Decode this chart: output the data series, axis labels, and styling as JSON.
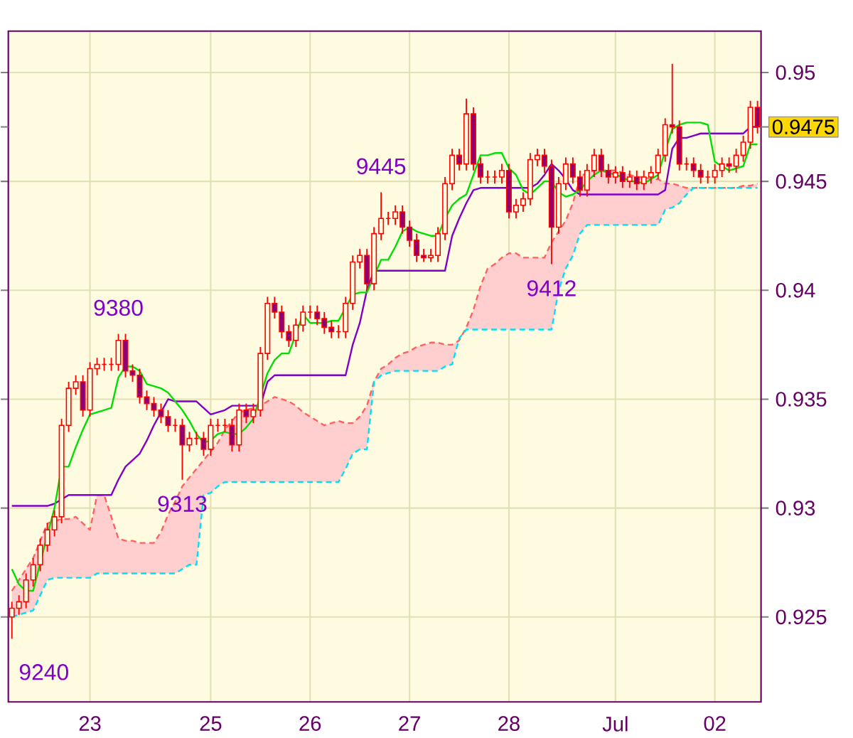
{
  "chart_data": {
    "type": "candlestick",
    "color": "#ff0000",
    "categories": [
      null,
      null,
      null,
      null,
      null,
      null,
      null,
      null,
      null,
      null,
      null,
      "23",
      null,
      null,
      null,
      null,
      null,
      null,
      null,
      null,
      null,
      null,
      null,
      null,
      null,
      null,
      null,
      null,
      "25",
      null,
      null,
      null,
      null,
      null,
      null,
      null,
      null,
      null,
      null,
      null,
      null,
      null,
      "26",
      null,
      null,
      null,
      null,
      null,
      null,
      null,
      null,
      null,
      null,
      null,
      null,
      null,
      "27",
      null,
      null,
      null,
      null,
      null,
      null,
      null,
      null,
      null,
      null,
      null,
      null,
      null,
      "28",
      null,
      null,
      null,
      null,
      null,
      null,
      null,
      null,
      null,
      null,
      null,
      null,
      null,
      null,
      "Jul",
      null,
      null,
      null,
      null,
      null,
      null,
      null,
      null,
      null,
      null,
      null,
      null,
      null,
      "02",
      null,
      null,
      null,
      null,
      null,
      null
    ],
    "ohlc": [
      [
        0.925,
        0.9257,
        0.924,
        0.9254
      ],
      [
        0.9254,
        0.926,
        0.9251,
        0.9257
      ],
      [
        0.9257,
        0.927,
        0.9254,
        0.9267
      ],
      [
        0.9267,
        0.9277,
        0.9264,
        0.9274
      ],
      [
        0.9274,
        0.9286,
        0.9271,
        0.9283
      ],
      [
        0.9283,
        0.9293,
        0.928,
        0.929
      ],
      [
        0.929,
        0.9299,
        0.9287,
        0.9296
      ],
      [
        0.9296,
        0.9341,
        0.9293,
        0.9338
      ],
      [
        0.9338,
        0.9358,
        0.9335,
        0.9355
      ],
      [
        0.9355,
        0.9361,
        0.9352,
        0.9358
      ],
      [
        0.9358,
        0.9361,
        0.9342,
        0.9345
      ],
      [
        0.9345,
        0.9367,
        0.9342,
        0.9364
      ],
      [
        0.9364,
        0.9369,
        0.9361,
        0.9366
      ],
      [
        0.9366,
        0.9369,
        0.9363,
        0.9366
      ],
      [
        0.9366,
        0.9369,
        0.9363,
        0.9366
      ],
      [
        0.9366,
        0.938,
        0.9363,
        0.9377
      ],
      [
        0.9377,
        0.938,
        0.936,
        0.9363
      ],
      [
        0.9363,
        0.9366,
        0.9358,
        0.9361
      ],
      [
        0.9361,
        0.9364,
        0.9348,
        0.9351
      ],
      [
        0.9351,
        0.9354,
        0.9345,
        0.9348
      ],
      [
        0.9348,
        0.9351,
        0.9342,
        0.9345
      ],
      [
        0.9345,
        0.9348,
        0.9339,
        0.9342
      ],
      [
        0.9342,
        0.9345,
        0.9335,
        0.9338
      ],
      [
        0.9338,
        0.9341,
        0.9335,
        0.9338
      ],
      [
        0.9338,
        0.9341,
        0.9313,
        0.9329
      ],
      [
        0.9329,
        0.9335,
        0.9326,
        0.9332
      ],
      [
        0.9332,
        0.9335,
        0.9329,
        0.9332
      ],
      [
        0.9332,
        0.9335,
        0.9324,
        0.9327
      ],
      [
        0.9327,
        0.9341,
        0.9324,
        0.9338
      ],
      [
        0.9338,
        0.9341,
        0.9335,
        0.9338
      ],
      [
        0.9338,
        0.9341,
        0.9335,
        0.9338
      ],
      [
        0.9338,
        0.9341,
        0.9326,
        0.9329
      ],
      [
        0.9329,
        0.9348,
        0.9326,
        0.9345
      ],
      [
        0.9345,
        0.9348,
        0.9339,
        0.9342
      ],
      [
        0.9342,
        0.9348,
        0.9339,
        0.9345
      ],
      [
        0.9345,
        0.9374,
        0.9342,
        0.9371
      ],
      [
        0.9371,
        0.9397,
        0.9368,
        0.9394
      ],
      [
        0.9394,
        0.9397,
        0.9387,
        0.939
      ],
      [
        0.939,
        0.9393,
        0.9378,
        0.9381
      ],
      [
        0.9381,
        0.9384,
        0.9374,
        0.9377
      ],
      [
        0.9377,
        0.9387,
        0.9374,
        0.9384
      ],
      [
        0.9384,
        0.9393,
        0.9381,
        0.939
      ],
      [
        0.939,
        0.9393,
        0.9387,
        0.939
      ],
      [
        0.939,
        0.9393,
        0.9384,
        0.9387
      ],
      [
        0.9387,
        0.939,
        0.938,
        0.9383
      ],
      [
        0.9383,
        0.9386,
        0.9378,
        0.9381
      ],
      [
        0.9381,
        0.9384,
        0.9378,
        0.9381
      ],
      [
        0.9381,
        0.9397,
        0.9378,
        0.9394
      ],
      [
        0.9394,
        0.9416,
        0.9391,
        0.9413
      ],
      [
        0.9413,
        0.9419,
        0.941,
        0.9416
      ],
      [
        0.9416,
        0.9419,
        0.94,
        0.9403
      ],
      [
        0.9403,
        0.9429,
        0.94,
        0.9426
      ],
      [
        0.9426,
        0.9445,
        0.9423,
        0.9433
      ],
      [
        0.9433,
        0.9436,
        0.943,
        0.9433
      ],
      [
        0.9433,
        0.9439,
        0.943,
        0.9436
      ],
      [
        0.9436,
        0.9439,
        0.9426,
        0.9429
      ],
      [
        0.9429,
        0.9432,
        0.942,
        0.9423
      ],
      [
        0.9423,
        0.9426,
        0.9413,
        0.9416
      ],
      [
        0.9416,
        0.9419,
        0.9413,
        0.9415
      ],
      [
        0.9415,
        0.9419,
        0.9413,
        0.9416
      ],
      [
        0.9416,
        0.9429,
        0.9413,
        0.9426
      ],
      [
        0.9426,
        0.9452,
        0.9423,
        0.9449
      ],
      [
        0.9449,
        0.9465,
        0.9446,
        0.9462
      ],
      [
        0.9462,
        0.9465,
        0.9455,
        0.9458
      ],
      [
        0.9458,
        0.9488,
        0.9455,
        0.9481
      ],
      [
        0.9481,
        0.9484,
        0.9455,
        0.9458
      ],
      [
        0.9458,
        0.9461,
        0.9449,
        0.9452
      ],
      [
        0.9452,
        0.9455,
        0.9449,
        0.9452
      ],
      [
        0.9452,
        0.9455,
        0.9449,
        0.9452
      ],
      [
        0.9452,
        0.9458,
        0.9449,
        0.9455
      ],
      [
        0.9455,
        0.9458,
        0.9433,
        0.9436
      ],
      [
        0.9436,
        0.9442,
        0.9433,
        0.9439
      ],
      [
        0.9439,
        0.9445,
        0.9436,
        0.9442
      ],
      [
        0.9442,
        0.9463,
        0.9439,
        0.946
      ],
      [
        0.946,
        0.9465,
        0.9457,
        0.9462
      ],
      [
        0.9462,
        0.9465,
        0.9454,
        0.9457
      ],
      [
        0.9457,
        0.946,
        0.9412,
        0.9429
      ],
      [
        0.9429,
        0.9452,
        0.9426,
        0.9449
      ],
      [
        0.9449,
        0.9461,
        0.9446,
        0.9458
      ],
      [
        0.9458,
        0.9461,
        0.9449,
        0.9452
      ],
      [
        0.9452,
        0.9455,
        0.9443,
        0.9446
      ],
      [
        0.9446,
        0.9458,
        0.9443,
        0.9455
      ],
      [
        0.9455,
        0.9465,
        0.9452,
        0.9462
      ],
      [
        0.9462,
        0.9465,
        0.9452,
        0.9455
      ],
      [
        0.9455,
        0.9458,
        0.9449,
        0.9452
      ],
      [
        0.9452,
        0.9457,
        0.9449,
        0.9454
      ],
      [
        0.9454,
        0.9457,
        0.9447,
        0.945
      ],
      [
        0.945,
        0.9455,
        0.9447,
        0.9452
      ],
      [
        0.9452,
        0.9455,
        0.9446,
        0.9449
      ],
      [
        0.9449,
        0.9455,
        0.9446,
        0.9452
      ],
      [
        0.9452,
        0.9457,
        0.9449,
        0.9454
      ],
      [
        0.9454,
        0.9465,
        0.9451,
        0.9462
      ],
      [
        0.9462,
        0.9479,
        0.9459,
        0.9476
      ],
      [
        0.9476,
        0.9504,
        0.9472,
        0.9475
      ],
      [
        0.9475,
        0.9478,
        0.9455,
        0.9458
      ],
      [
        0.9458,
        0.9461,
        0.9455,
        0.9458
      ],
      [
        0.9458,
        0.9461,
        0.9452,
        0.9455
      ],
      [
        0.9455,
        0.9458,
        0.9449,
        0.9452
      ],
      [
        0.9452,
        0.9455,
        0.9449,
        0.9452
      ],
      [
        0.9452,
        0.9458,
        0.9449,
        0.9455
      ],
      [
        0.9455,
        0.9461,
        0.9452,
        0.9458
      ],
      [
        0.9458,
        0.9461,
        0.9454,
        0.9457
      ],
      [
        0.9457,
        0.9465,
        0.9454,
        0.9462
      ],
      [
        0.9462,
        0.9471,
        0.9459,
        0.9468
      ],
      [
        0.9468,
        0.9487,
        0.9465,
        0.9484
      ],
      [
        0.9484,
        0.9487,
        0.9472,
        0.9475
      ]
    ],
    "series": [
      {
        "type": "line",
        "color": "#ff6060",
        "line_style": "dashed",
        "values": [
          0.9262,
          0.9267,
          0.9272,
          0.9277,
          0.9285,
          0.9293,
          0.9294,
          0.9295,
          0.9295,
          0.9296,
          0.9293,
          0.929,
          0.9306,
          0.9306,
          0.9296,
          0.9286,
          0.9285,
          0.9285,
          0.9284,
          0.9284,
          0.9284,
          0.9289,
          0.9297,
          0.9303,
          0.931,
          0.9314,
          0.9318,
          0.9322,
          0.9326,
          0.933,
          0.9336,
          0.934,
          0.9344,
          0.9345,
          0.9346,
          0.9347,
          0.9349,
          0.9351,
          0.935,
          0.9349,
          0.9347,
          0.9344,
          0.9342,
          0.934,
          0.9338,
          0.9339,
          0.934,
          0.9339,
          0.9339,
          0.9342,
          0.9347,
          0.9358,
          0.9364,
          0.9366,
          0.9369,
          0.9371,
          0.9372,
          0.9374,
          0.9375,
          0.9376,
          0.9376,
          0.9375,
          0.9375,
          0.9377,
          0.9383,
          0.9391,
          0.9402,
          0.941,
          0.9412,
          0.9415,
          0.9417,
          0.9417,
          0.9415,
          0.9415,
          0.9415,
          0.9415,
          0.9422,
          0.9427,
          0.9432,
          0.944,
          0.9452,
          0.9454,
          0.9455,
          0.9455,
          0.9455,
          0.9455,
          0.9454,
          0.9453,
          0.9452,
          0.9452,
          0.9451,
          0.9451,
          0.9449,
          0.9449,
          0.9448,
          0.9447,
          0.9447,
          0.9447,
          0.9447,
          0.9447,
          0.9447,
          0.9447,
          0.9447,
          0.9448,
          0.9448,
          0.9449
        ],
        "upper": [
          0.9262,
          0.9267,
          0.9272,
          0.9277,
          0.9285,
          0.9293,
          0.9294,
          0.9295,
          0.9295,
          0.9296,
          0.9293,
          0.929,
          0.9306,
          0.9306,
          0.9296,
          0.9286,
          0.9285,
          0.9285,
          0.9284,
          0.9284,
          0.9284,
          0.9289,
          0.9297,
          0.9303,
          0.931,
          0.9314,
          0.9318,
          0.9322,
          0.9326,
          0.933,
          0.9336,
          0.934,
          0.9344,
          0.9345,
          0.9346,
          0.9347,
          0.9349,
          0.9351,
          0.935,
          0.9349,
          0.9347,
          0.9344,
          0.9342,
          0.934,
          0.9338,
          0.9339,
          0.934,
          0.9339,
          0.9339,
          0.9342,
          0.9347,
          0.9358,
          0.9364,
          0.9366,
          0.9369,
          0.9371,
          0.9372,
          0.9374,
          0.9375,
          0.9376,
          0.9376,
          0.9375,
          0.9375,
          0.9377,
          0.9383,
          0.9391,
          0.9402,
          0.941,
          0.9412,
          0.9415,
          0.9417,
          0.9417,
          0.9415,
          0.9415,
          0.9415,
          0.9415,
          0.9422,
          0.9427,
          0.9432,
          0.944,
          0.9452,
          0.9454,
          0.9455,
          0.9455,
          0.9455,
          0.9455,
          0.9454,
          0.9453,
          0.9452,
          0.9452,
          0.9451,
          0.9451,
          0.9449,
          0.9449,
          0.9448,
          0.9447,
          0.9447,
          0.9447,
          0.9447,
          0.9447,
          0.9447,
          0.9447,
          0.9447,
          0.9448,
          0.9448,
          0.9449
        ],
        "lower": [
          0.925,
          0.9251,
          0.9252,
          0.9253,
          0.926,
          0.9267,
          0.9268,
          0.9268,
          0.9268,
          0.9268,
          0.9268,
          0.9268,
          0.927,
          0.927,
          0.927,
          0.927,
          0.927,
          0.927,
          0.927,
          0.927,
          0.927,
          0.927,
          0.927,
          0.927,
          0.9272,
          0.9274,
          0.9274,
          0.9306,
          0.9307,
          0.931,
          0.9312,
          0.9312,
          0.9312,
          0.9312,
          0.9312,
          0.9312,
          0.9312,
          0.9312,
          0.9312,
          0.9312,
          0.9312,
          0.9312,
          0.9312,
          0.9312,
          0.9312,
          0.9312,
          0.9312,
          0.9318,
          0.9325,
          0.9327,
          0.9327,
          0.9358,
          0.9361,
          0.9362,
          0.9363,
          0.9363,
          0.9363,
          0.9363,
          0.9363,
          0.9363,
          0.9363,
          0.9365,
          0.9366,
          0.9378,
          0.9382,
          0.9382,
          0.9382,
          0.9382,
          0.9382,
          0.9382,
          0.9382,
          0.9382,
          0.9382,
          0.9382,
          0.9382,
          0.9382,
          0.9382,
          0.94,
          0.941,
          0.9416,
          0.9426,
          0.943,
          0.943,
          0.943,
          0.943,
          0.943,
          0.943,
          0.943,
          0.943,
          0.943,
          0.943,
          0.943,
          0.9437,
          0.9438,
          0.944,
          0.9444,
          0.9447,
          0.9447,
          0.9447,
          0.9447,
          0.9447,
          0.9447,
          0.9447,
          0.9447,
          0.9447,
          0.9447
        ]
      },
      {
        "type": "line",
        "color": "#00e0f0",
        "line_style": "dashed",
        "values": [
          0.925,
          0.9251,
          0.9252,
          0.9253,
          0.926,
          0.9267,
          0.9268,
          0.9268,
          0.9268,
          0.9268,
          0.9268,
          0.9268,
          0.927,
          0.927,
          0.927,
          0.927,
          0.927,
          0.927,
          0.927,
          0.927,
          0.927,
          0.927,
          0.927,
          0.927,
          0.9272,
          0.9274,
          0.9274,
          0.9306,
          0.9307,
          0.931,
          0.9312,
          0.9312,
          0.9312,
          0.9312,
          0.9312,
          0.9312,
          0.9312,
          0.9312,
          0.9312,
          0.9312,
          0.9312,
          0.9312,
          0.9312,
          0.9312,
          0.9312,
          0.9312,
          0.9312,
          0.9318,
          0.9325,
          0.9327,
          0.9327,
          0.9358,
          0.9361,
          0.9362,
          0.9363,
          0.9363,
          0.9363,
          0.9363,
          0.9363,
          0.9363,
          0.9363,
          0.9365,
          0.9366,
          0.9378,
          0.9382,
          0.9382,
          0.9382,
          0.9382,
          0.9382,
          0.9382,
          0.9382,
          0.9382,
          0.9382,
          0.9382,
          0.9382,
          0.9382,
          0.9382,
          0.94,
          0.941,
          0.9416,
          0.9426,
          0.943,
          0.943,
          0.943,
          0.943,
          0.943,
          0.943,
          0.943,
          0.943,
          0.943,
          0.943,
          0.943,
          0.9437,
          0.9438,
          0.944,
          0.9444,
          0.9447,
          0.9447,
          0.9447,
          0.9447,
          0.9447,
          0.9447,
          0.9447,
          0.9447,
          0.9447,
          0.9447
        ]
      },
      {
        "type": "line",
        "color": "#8000c8",
        "values": [
          0.9301,
          0.9301,
          0.9301,
          0.9301,
          0.9301,
          0.9301,
          0.9302,
          0.9304,
          0.9306,
          0.9306,
          0.9306,
          0.9306,
          0.9306,
          0.9306,
          0.9306,
          0.9313,
          0.9319,
          0.9322,
          0.9325,
          0.9331,
          0.9338,
          0.9344,
          0.935,
          0.9349,
          0.9349,
          0.9349,
          0.9349,
          0.9346,
          0.9343,
          0.9344,
          0.9345,
          0.9347,
          0.9347,
          0.9347,
          0.9347,
          0.9347,
          0.9358,
          0.9361,
          0.9361,
          0.9361,
          0.9361,
          0.9361,
          0.9361,
          0.9361,
          0.9361,
          0.9361,
          0.9361,
          0.9361,
          0.9375,
          0.9385,
          0.94,
          0.9409,
          0.9409,
          0.9409,
          0.9409,
          0.9409,
          0.9409,
          0.9409,
          0.9409,
          0.9409,
          0.9409,
          0.9409,
          0.9425,
          0.9433,
          0.944,
          0.9446,
          0.9447,
          0.9447,
          0.9447,
          0.9447,
          0.9447,
          0.9447,
          0.9447,
          0.9447,
          0.9449,
          0.9453,
          0.9458,
          0.9455,
          0.9451,
          0.9446,
          0.9444,
          0.9444,
          0.9444,
          0.9444,
          0.9444,
          0.9444,
          0.9444,
          0.9444,
          0.9444,
          0.9444,
          0.9444,
          0.9444,
          0.9446,
          0.9465,
          0.947,
          0.947,
          0.9471,
          0.9472,
          0.9472,
          0.9472,
          0.9472,
          0.9472,
          0.9472,
          0.9472,
          0.9475,
          0.9475
        ]
      },
      {
        "type": "line",
        "color": "#00e000",
        "values": [
          0.9272,
          0.9265,
          0.9262,
          0.9262,
          0.9275,
          null,
          0.93,
          0.9319,
          0.9319,
          0.9328,
          0.9336,
          0.9343,
          0.9344,
          0.9345,
          0.9346,
          0.936,
          0.9365,
          0.9365,
          0.9363,
          0.9357,
          0.9356,
          0.9355,
          0.9353,
          0.9349,
          0.9345,
          0.934,
          0.9334,
          0.933,
          0.9331,
          0.9334,
          0.9335,
          0.9334,
          0.9334,
          0.9337,
          0.9341,
          null,
          0.9362,
          0.9368,
          0.9371,
          0.9371,
          null,
          0.9389,
          0.9385,
          0.9385,
          0.9385,
          0.9386,
          0.9386,
          0.9392,
          0.9398,
          0.9399,
          0.9399,
          null,
          0.9414,
          0.9414,
          0.942,
          0.9427,
          0.9429,
          0.9427,
          0.9426,
          0.9425,
          0.9425,
          0.9433,
          0.9439,
          0.9442,
          0.9444,
          0.9453,
          0.9462,
          0.9462,
          0.9463,
          0.9463,
          0.9456,
          0.9453,
          0.9446,
          0.9444,
          0.9447,
          0.945,
          0.945,
          0.9445,
          0.9443,
          0.9444,
          0.9446,
          0.945,
          0.9453,
          0.9455,
          0.9454,
          0.9453,
          0.9452,
          0.945,
          0.945,
          0.9449,
          0.9451,
          0.9453,
          0.9464,
          0.9474,
          0.9476,
          0.9477,
          0.9477,
          0.9477,
          0.9476,
          0.9459,
          0.9457,
          0.9455,
          0.9456,
          0.9457,
          0.9467,
          0.9467
        ]
      }
    ],
    "ylim": [
      0.9211,
      0.9519
    ],
    "yticks": [
      0.925,
      0.93,
      0.935,
      0.94,
      0.945,
      0.9475,
      0.95
    ],
    "grid": true,
    "annotations": [
      "9240",
      {
        "text": "9380",
        "y": 0.938
      },
      {
        "text": "9313",
        "y": 0.9313
      },
      {
        "text": "9445",
        "y": 0.9445
      },
      {
        "text": "9412",
        "y": 0.9412
      }
    ]
  }
}
